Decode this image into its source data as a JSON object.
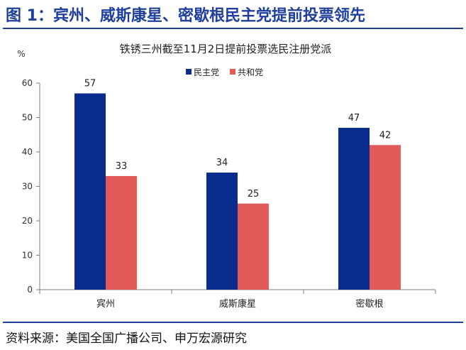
{
  "figure": {
    "title": "图 1：宾州、威斯康星、密歇根民主党提前投票领先",
    "source": "资料来源：美国全国广播公司、申万宏源研究"
  },
  "colors": {
    "accent": "#1f3f9e",
    "series_1": "#0a2b8e",
    "series_2": "#e35a5a"
  },
  "chart_data": {
    "type": "bar",
    "title": "铁锈三州截至11月2日提前投票选民注册党派",
    "ylabel": "%",
    "xlabel": "",
    "categories": [
      "宾州",
      "威斯康星",
      "密歇根"
    ],
    "series": [
      {
        "name": "民主党",
        "values": [
          57,
          34,
          47
        ]
      },
      {
        "name": "共和党",
        "values": [
          33,
          25,
          42
        ]
      }
    ],
    "ylim": [
      0,
      60
    ],
    "yticks": [
      0,
      10,
      20,
      30,
      40,
      50,
      60
    ],
    "grid": false,
    "legend": "top-center",
    "data_labels": true
  }
}
